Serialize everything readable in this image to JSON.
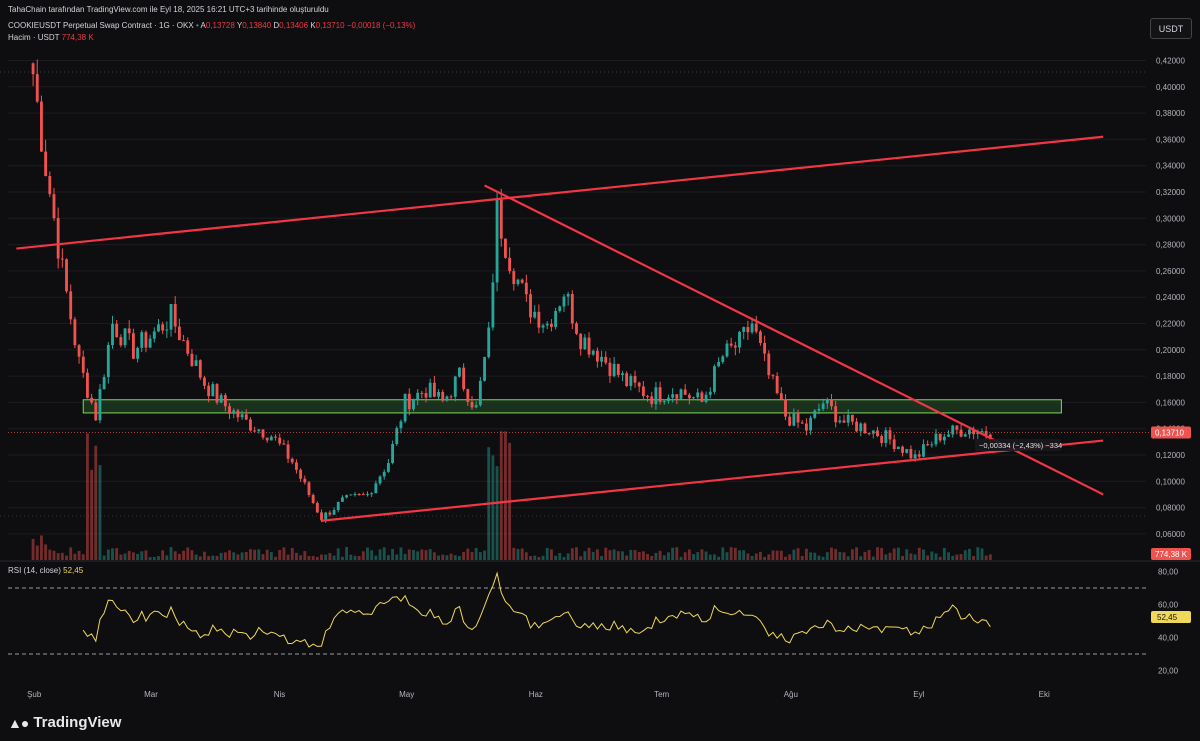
{
  "header": {
    "credit": "TahaChain tarafından TradingView.com ile Eyl 18, 2025 16:21 UTC+3 tarihinde oluşturuldu",
    "symbol": "COOKIEUSDT Perpetual Swap Contract · 1G · OKX",
    "ohlc": {
      "o_label": "A",
      "o_value": "0,13728",
      "h_label": "Y",
      "h_value": "0,13840",
      "l_label": "D",
      "l_value": "0,13406",
      "c_label": "K",
      "c_value": "0,13710",
      "change": "−0,00018 (−0,13%)"
    },
    "volume_label": "Hacim · USDT",
    "volume_value": "774,38 K",
    "rsi_label": "RSI (14, close)",
    "rsi_value": "52,45"
  },
  "unit_badge": "USDT",
  "price_axis": {
    "ticks": [
      "0,42000",
      "0,40000",
      "0,38000",
      "0,36000",
      "0,34000",
      "0,32000",
      "0,30000",
      "0,28000",
      "0,26000",
      "0,24000",
      "0,22000",
      "0,20000",
      "0,18000",
      "0,16000",
      "0,14000",
      "0,12000",
      "0,10000",
      "0,08000",
      "0,06000"
    ],
    "last_price": "0,13710",
    "volume_badge": "774,38 K"
  },
  "rsi_axis": {
    "ticks": [
      "80,00",
      "60,00",
      "40,00",
      "20,00"
    ],
    "current": "52,45"
  },
  "time_axis": {
    "labels": [
      "Şub",
      "Mar",
      "Nis",
      "May",
      "Haz",
      "Tem",
      "Ağu",
      "Eyl",
      "Eki"
    ]
  },
  "measure_label": "−0,00334 (−2,43%) −334",
  "colors": {
    "up": "#26a69a",
    "down": "#ef5350",
    "trendline": "#f23645",
    "zone_fill": "#1f3d22",
    "zone_border": "#7ed957",
    "rsi_line": "#f0d85a",
    "background": "#0e0e10",
    "grid": "#1c1c20"
  },
  "footer": {
    "brand": "TradingView",
    "logo_icon": "tradingview-logo-icon"
  },
  "chart_data": {
    "type": "candlestick",
    "symbol": "COOKIEUSDT",
    "timeframe": "1D",
    "ylim": [
      0.05,
      0.43
    ],
    "price_series_approx": [
      [
        "2025-02-01",
        0.41
      ],
      [
        "2025-02-04",
        0.34
      ],
      [
        "2025-02-08",
        0.26
      ],
      [
        "2025-02-12",
        0.19
      ],
      [
        "2025-02-16",
        0.15
      ],
      [
        "2025-02-20",
        0.22
      ],
      [
        "2025-02-25",
        0.2
      ],
      [
        "2025-03-01",
        0.21
      ],
      [
        "2025-03-06",
        0.225
      ],
      [
        "2025-03-10",
        0.2
      ],
      [
        "2025-03-14",
        0.175
      ],
      [
        "2025-03-18",
        0.16
      ],
      [
        "2025-03-24",
        0.145
      ],
      [
        "2025-03-30",
        0.135
      ],
      [
        "2025-04-04",
        0.115
      ],
      [
        "2025-04-08",
        0.09
      ],
      [
        "2025-04-11",
        0.072
      ],
      [
        "2025-04-16",
        0.085
      ],
      [
        "2025-04-22",
        0.09
      ],
      [
        "2025-04-27",
        0.115
      ],
      [
        "2025-05-01",
        0.16
      ],
      [
        "2025-05-06",
        0.17
      ],
      [
        "2025-05-10",
        0.16
      ],
      [
        "2025-05-14",
        0.18
      ],
      [
        "2025-05-18",
        0.155
      ],
      [
        "2025-05-21",
        0.21
      ],
      [
        "2025-05-23",
        0.305
      ],
      [
        "2025-05-26",
        0.27
      ],
      [
        "2025-05-30",
        0.235
      ],
      [
        "2025-06-04",
        0.22
      ],
      [
        "2025-06-08",
        0.245
      ],
      [
        "2025-06-12",
        0.21
      ],
      [
        "2025-06-17",
        0.195
      ],
      [
        "2025-06-23",
        0.175
      ],
      [
        "2025-06-29",
        0.165
      ],
      [
        "2025-07-05",
        0.17
      ],
      [
        "2025-07-11",
        0.16
      ],
      [
        "2025-07-16",
        0.195
      ],
      [
        "2025-07-20",
        0.205
      ],
      [
        "2025-07-23",
        0.22
      ],
      [
        "2025-07-27",
        0.18
      ],
      [
        "2025-07-31",
        0.15
      ],
      [
        "2025-08-05",
        0.14
      ],
      [
        "2025-08-09",
        0.16
      ],
      [
        "2025-08-14",
        0.145
      ],
      [
        "2025-08-20",
        0.14
      ],
      [
        "2025-08-26",
        0.13
      ],
      [
        "2025-08-31",
        0.118
      ],
      [
        "2025-09-06",
        0.135
      ],
      [
        "2025-09-12",
        0.14
      ],
      [
        "2025-09-18",
        0.1371
      ]
    ],
    "trendlines": [
      {
        "from": [
          "2025-01-28",
          0.277
        ],
        "to": [
          "2025-10-15",
          0.362
        ]
      },
      {
        "from": [
          "2025-05-20",
          0.325
        ],
        "to": [
          "2025-10-15",
          0.09
        ]
      },
      {
        "from": [
          "2025-04-11",
          0.07
        ],
        "to": [
          "2025-10-15",
          0.131
        ]
      }
    ],
    "support_zone": {
      "from": "2025-02-13",
      "to": "2025-10-05",
      "low": 0.152,
      "high": 0.162
    },
    "volume_last": "774,38 K",
    "rsi": {
      "period": 14,
      "current": 52.45,
      "levels": [
        70,
        30
      ]
    }
  }
}
